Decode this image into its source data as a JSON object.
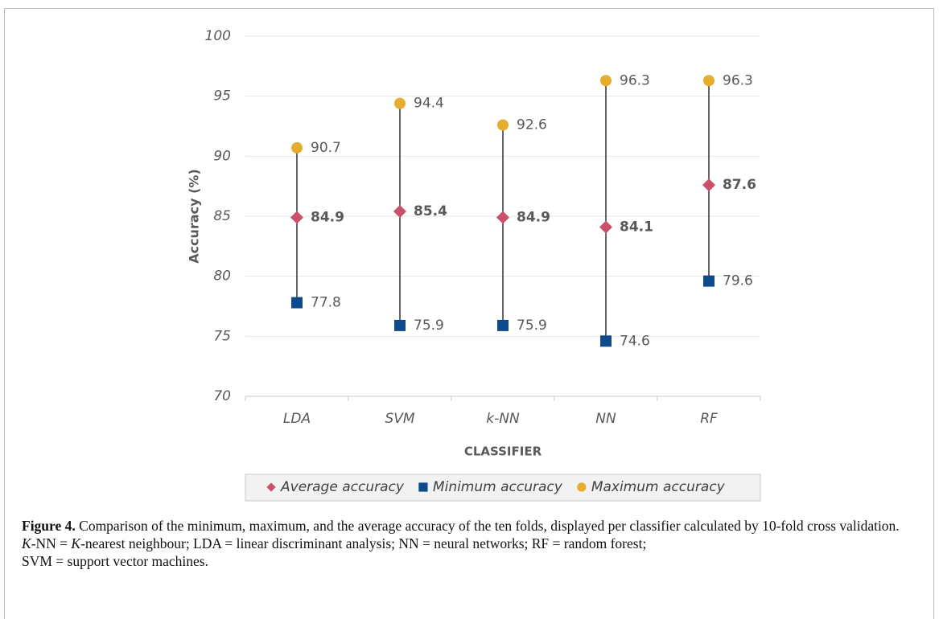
{
  "chart_data": {
    "type": "range-dot",
    "xlabel": "CLASSIFIER",
    "ylabel": "Accuracy  (%)",
    "categories": [
      "LDA",
      "SVM",
      "k-NN",
      "NN",
      "RF"
    ],
    "series": [
      {
        "name": "Average accuracy",
        "color": "#c9516a",
        "marker": "diamond",
        "bold_labels": true,
        "values": [
          84.9,
          85.4,
          84.9,
          84.1,
          87.6
        ]
      },
      {
        "name": "Minimum accuracy",
        "color": "#0e4a8c",
        "marker": "square",
        "bold_labels": false,
        "values": [
          77.8,
          75.9,
          75.9,
          74.6,
          79.6
        ]
      },
      {
        "name": "Maximum accuracy",
        "color": "#e6ad2e",
        "marker": "circle",
        "bold_labels": false,
        "values": [
          90.7,
          94.4,
          92.6,
          96.3,
          96.3
        ]
      }
    ],
    "ylim": [
      70,
      100
    ],
    "yticks": [
      70,
      75,
      80,
      85,
      90,
      95,
      100
    ],
    "grid": true,
    "legend": "bottom"
  },
  "caption": {
    "label": "Figure 4.",
    "text": "Comparison of the minimum, maximum, and the average accuracy of the ten folds, displayed per classifier calculated by 10-fold cross validation.",
    "note": [
      [
        {
          "text": "K",
          "italic": true
        },
        {
          "text": "-NN = ",
          "italic": false
        },
        {
          "text": "K",
          "italic": true
        },
        {
          "text": "-nearest neighbour; LDA = linear discriminant analysis; NN = neural networks; RF = random forest;",
          "italic": false
        }
      ],
      [
        {
          "text": "SVM = support vector machines.",
          "italic": false
        }
      ]
    ]
  }
}
